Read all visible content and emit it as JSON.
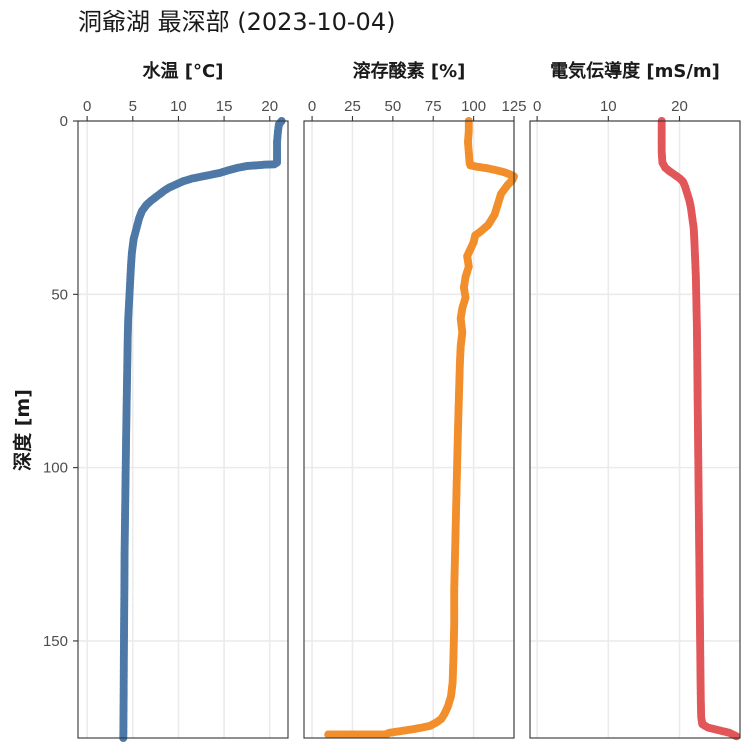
{
  "chart_data": {
    "type": "scatter",
    "title": "洞爺湖 最深部 (2023-10-04)",
    "ylabel": "深度 [m]",
    "ylim": [
      0,
      178
    ],
    "y_reversed": true,
    "y_ticks": [
      0,
      50,
      100,
      150
    ],
    "grid": true,
    "panels": [
      {
        "name": "水温 [°C]",
        "color": "#4e79a7",
        "xlim": [
          -1,
          22
        ],
        "x_ticks": [
          0,
          5,
          10,
          15,
          20
        ],
        "points": [
          [
            21.3,
            0
          ],
          [
            21.0,
            1
          ],
          [
            20.9,
            3
          ],
          [
            20.8,
            6
          ],
          [
            20.8,
            9
          ],
          [
            20.8,
            12
          ],
          [
            20.5,
            12.5
          ],
          [
            19.5,
            12.6
          ],
          [
            18.5,
            12.8
          ],
          [
            17.5,
            13
          ],
          [
            16.5,
            13.5
          ],
          [
            15.5,
            14.2
          ],
          [
            14.5,
            15
          ],
          [
            13,
            15.8
          ],
          [
            11.5,
            16.6
          ],
          [
            10.5,
            17.4
          ],
          [
            10,
            18
          ],
          [
            9.5,
            18.6
          ],
          [
            9,
            19.2
          ],
          [
            8.5,
            20
          ],
          [
            8,
            21
          ],
          [
            7.5,
            22
          ],
          [
            7,
            23
          ],
          [
            6.5,
            24.2
          ],
          [
            6,
            26
          ],
          [
            5.7,
            28
          ],
          [
            5.4,
            31
          ],
          [
            5.1,
            34
          ],
          [
            4.9,
            38
          ],
          [
            4.8,
            42
          ],
          [
            4.7,
            47
          ],
          [
            4.6,
            52
          ],
          [
            4.5,
            57
          ],
          [
            4.45,
            62
          ],
          [
            4.4,
            70
          ],
          [
            4.35,
            78
          ],
          [
            4.3,
            86
          ],
          [
            4.25,
            95
          ],
          [
            4.2,
            105
          ],
          [
            4.15,
            115
          ],
          [
            4.1,
            125
          ],
          [
            4.08,
            135
          ],
          [
            4.05,
            145
          ],
          [
            4.02,
            155
          ],
          [
            4.0,
            165
          ],
          [
            3.98,
            172
          ],
          [
            3.97,
            176
          ],
          [
            3.96,
            178
          ]
        ]
      },
      {
        "name": "溶存酸素 [%]",
        "color": "#f28e2b",
        "xlim": [
          -5,
          125
        ],
        "x_ticks": [
          0,
          25,
          50,
          75,
          100,
          125
        ],
        "points": [
          [
            97,
            0
          ],
          [
            97,
            3
          ],
          [
            96.5,
            6
          ],
          [
            97,
            9
          ],
          [
            97.5,
            12
          ],
          [
            98,
            12.8
          ],
          [
            102,
            13.2
          ],
          [
            108,
            13.6
          ],
          [
            114,
            14.2
          ],
          [
            119,
            14.8
          ],
          [
            123,
            15.5
          ],
          [
            125,
            16
          ],
          [
            124,
            17
          ],
          [
            121,
            18.5
          ],
          [
            117,
            21
          ],
          [
            115,
            24
          ],
          [
            113,
            27
          ],
          [
            109,
            30
          ],
          [
            104,
            32
          ],
          [
            101,
            33
          ],
          [
            100,
            35
          ],
          [
            98,
            37
          ],
          [
            96,
            39
          ],
          [
            97,
            42
          ],
          [
            95,
            45
          ],
          [
            94,
            48
          ],
          [
            95,
            51
          ],
          [
            93,
            54
          ],
          [
            92,
            57
          ],
          [
            93,
            61
          ],
          [
            92,
            65
          ],
          [
            91.5,
            70
          ],
          [
            91,
            78
          ],
          [
            90.5,
            86
          ],
          [
            90,
            95
          ],
          [
            89.5,
            105
          ],
          [
            89,
            115
          ],
          [
            88.5,
            125
          ],
          [
            88,
            135
          ],
          [
            88,
            145
          ],
          [
            87.5,
            155
          ],
          [
            87,
            162
          ],
          [
            86,
            166
          ],
          [
            84,
            169
          ],
          [
            82,
            171
          ],
          [
            80,
            172.5
          ],
          [
            77,
            173.5
          ],
          [
            73,
            174.5
          ],
          [
            68,
            175
          ],
          [
            62,
            175.5
          ],
          [
            55,
            176
          ],
          [
            48,
            176.5
          ],
          [
            45,
            177
          ],
          [
            10,
            177
          ]
        ]
      },
      {
        "name": "電気伝導度 [mS/m]",
        "color": "#e15759",
        "xlim": [
          -1,
          28.5
        ],
        "x_ticks": [
          0,
          10,
          20
        ],
        "points": [
          [
            17.5,
            0
          ],
          [
            17.5,
            3
          ],
          [
            17.5,
            6
          ],
          [
            17.5,
            9
          ],
          [
            17.6,
            12
          ],
          [
            18,
            13.5
          ],
          [
            18.6,
            14.5
          ],
          [
            19.3,
            15.5
          ],
          [
            20,
            16.5
          ],
          [
            20.5,
            17.5
          ],
          [
            20.8,
            19
          ],
          [
            21.1,
            21
          ],
          [
            21.4,
            23
          ],
          [
            21.6,
            25
          ],
          [
            21.8,
            28
          ],
          [
            22,
            31
          ],
          [
            22.1,
            35
          ],
          [
            22.2,
            40
          ],
          [
            22.3,
            45
          ],
          [
            22.35,
            50
          ],
          [
            22.4,
            55
          ],
          [
            22.45,
            60
          ],
          [
            22.5,
            70
          ],
          [
            22.55,
            80
          ],
          [
            22.6,
            90
          ],
          [
            22.65,
            100
          ],
          [
            22.7,
            110
          ],
          [
            22.75,
            120
          ],
          [
            22.8,
            130
          ],
          [
            22.85,
            140
          ],
          [
            22.9,
            150
          ],
          [
            22.95,
            160
          ],
          [
            23,
            168
          ],
          [
            23.05,
            172
          ],
          [
            23.2,
            174
          ],
          [
            24,
            175
          ],
          [
            25,
            175.5
          ],
          [
            26,
            176
          ],
          [
            27,
            176.5
          ],
          [
            28,
            177.5
          ]
        ]
      }
    ]
  }
}
